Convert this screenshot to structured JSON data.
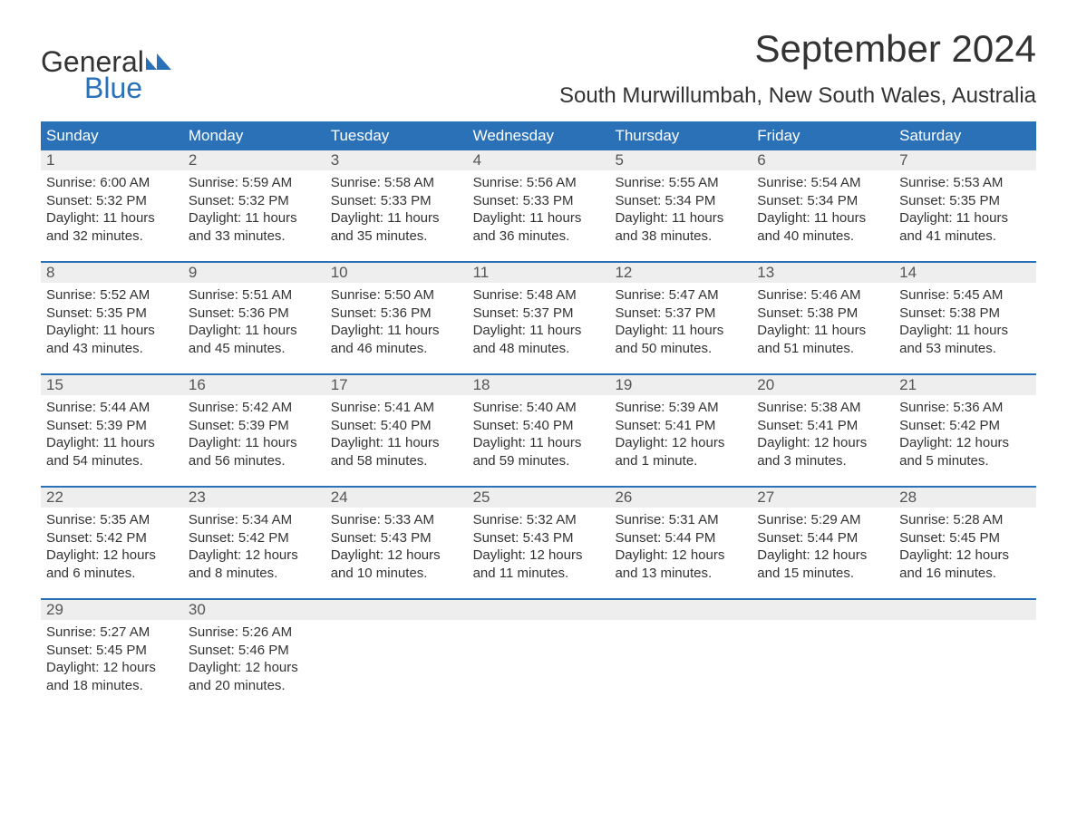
{
  "brand": {
    "word1": "General",
    "word2": "Blue",
    "logo_color": "#2a71b8"
  },
  "title": "September 2024",
  "location": "South Murwillumbah, New South Wales, Australia",
  "colors": {
    "header_bg": "#2a71b8",
    "header_text": "#ffffff",
    "date_bar_bg": "#eeeeee",
    "week_border": "#2a71b8",
    "body_text": "#333333",
    "page_bg": "#ffffff"
  },
  "typography": {
    "title_fontsize": 42,
    "location_fontsize": 24,
    "dayheader_fontsize": 17,
    "date_fontsize": 17,
    "body_fontsize": 15
  },
  "day_labels": [
    "Sunday",
    "Monday",
    "Tuesday",
    "Wednesday",
    "Thursday",
    "Friday",
    "Saturday"
  ],
  "weeks": [
    [
      {
        "date": "1",
        "sunrise": "Sunrise: 6:00 AM",
        "sunset": "Sunset: 5:32 PM",
        "daylight1": "Daylight: 11 hours",
        "daylight2": "and 32 minutes."
      },
      {
        "date": "2",
        "sunrise": "Sunrise: 5:59 AM",
        "sunset": "Sunset: 5:32 PM",
        "daylight1": "Daylight: 11 hours",
        "daylight2": "and 33 minutes."
      },
      {
        "date": "3",
        "sunrise": "Sunrise: 5:58 AM",
        "sunset": "Sunset: 5:33 PM",
        "daylight1": "Daylight: 11 hours",
        "daylight2": "and 35 minutes."
      },
      {
        "date": "4",
        "sunrise": "Sunrise: 5:56 AM",
        "sunset": "Sunset: 5:33 PM",
        "daylight1": "Daylight: 11 hours",
        "daylight2": "and 36 minutes."
      },
      {
        "date": "5",
        "sunrise": "Sunrise: 5:55 AM",
        "sunset": "Sunset: 5:34 PM",
        "daylight1": "Daylight: 11 hours",
        "daylight2": "and 38 minutes."
      },
      {
        "date": "6",
        "sunrise": "Sunrise: 5:54 AM",
        "sunset": "Sunset: 5:34 PM",
        "daylight1": "Daylight: 11 hours",
        "daylight2": "and 40 minutes."
      },
      {
        "date": "7",
        "sunrise": "Sunrise: 5:53 AM",
        "sunset": "Sunset: 5:35 PM",
        "daylight1": "Daylight: 11 hours",
        "daylight2": "and 41 minutes."
      }
    ],
    [
      {
        "date": "8",
        "sunrise": "Sunrise: 5:52 AM",
        "sunset": "Sunset: 5:35 PM",
        "daylight1": "Daylight: 11 hours",
        "daylight2": "and 43 minutes."
      },
      {
        "date": "9",
        "sunrise": "Sunrise: 5:51 AM",
        "sunset": "Sunset: 5:36 PM",
        "daylight1": "Daylight: 11 hours",
        "daylight2": "and 45 minutes."
      },
      {
        "date": "10",
        "sunrise": "Sunrise: 5:50 AM",
        "sunset": "Sunset: 5:36 PM",
        "daylight1": "Daylight: 11 hours",
        "daylight2": "and 46 minutes."
      },
      {
        "date": "11",
        "sunrise": "Sunrise: 5:48 AM",
        "sunset": "Sunset: 5:37 PM",
        "daylight1": "Daylight: 11 hours",
        "daylight2": "and 48 minutes."
      },
      {
        "date": "12",
        "sunrise": "Sunrise: 5:47 AM",
        "sunset": "Sunset: 5:37 PM",
        "daylight1": "Daylight: 11 hours",
        "daylight2": "and 50 minutes."
      },
      {
        "date": "13",
        "sunrise": "Sunrise: 5:46 AM",
        "sunset": "Sunset: 5:38 PM",
        "daylight1": "Daylight: 11 hours",
        "daylight2": "and 51 minutes."
      },
      {
        "date": "14",
        "sunrise": "Sunrise: 5:45 AM",
        "sunset": "Sunset: 5:38 PM",
        "daylight1": "Daylight: 11 hours",
        "daylight2": "and 53 minutes."
      }
    ],
    [
      {
        "date": "15",
        "sunrise": "Sunrise: 5:44 AM",
        "sunset": "Sunset: 5:39 PM",
        "daylight1": "Daylight: 11 hours",
        "daylight2": "and 54 minutes."
      },
      {
        "date": "16",
        "sunrise": "Sunrise: 5:42 AM",
        "sunset": "Sunset: 5:39 PM",
        "daylight1": "Daylight: 11 hours",
        "daylight2": "and 56 minutes."
      },
      {
        "date": "17",
        "sunrise": "Sunrise: 5:41 AM",
        "sunset": "Sunset: 5:40 PM",
        "daylight1": "Daylight: 11 hours",
        "daylight2": "and 58 minutes."
      },
      {
        "date": "18",
        "sunrise": "Sunrise: 5:40 AM",
        "sunset": "Sunset: 5:40 PM",
        "daylight1": "Daylight: 11 hours",
        "daylight2": "and 59 minutes."
      },
      {
        "date": "19",
        "sunrise": "Sunrise: 5:39 AM",
        "sunset": "Sunset: 5:41 PM",
        "daylight1": "Daylight: 12 hours",
        "daylight2": "and 1 minute."
      },
      {
        "date": "20",
        "sunrise": "Sunrise: 5:38 AM",
        "sunset": "Sunset: 5:41 PM",
        "daylight1": "Daylight: 12 hours",
        "daylight2": "and 3 minutes."
      },
      {
        "date": "21",
        "sunrise": "Sunrise: 5:36 AM",
        "sunset": "Sunset: 5:42 PM",
        "daylight1": "Daylight: 12 hours",
        "daylight2": "and 5 minutes."
      }
    ],
    [
      {
        "date": "22",
        "sunrise": "Sunrise: 5:35 AM",
        "sunset": "Sunset: 5:42 PM",
        "daylight1": "Daylight: 12 hours",
        "daylight2": "and 6 minutes."
      },
      {
        "date": "23",
        "sunrise": "Sunrise: 5:34 AM",
        "sunset": "Sunset: 5:42 PM",
        "daylight1": "Daylight: 12 hours",
        "daylight2": "and 8 minutes."
      },
      {
        "date": "24",
        "sunrise": "Sunrise: 5:33 AM",
        "sunset": "Sunset: 5:43 PM",
        "daylight1": "Daylight: 12 hours",
        "daylight2": "and 10 minutes."
      },
      {
        "date": "25",
        "sunrise": "Sunrise: 5:32 AM",
        "sunset": "Sunset: 5:43 PM",
        "daylight1": "Daylight: 12 hours",
        "daylight2": "and 11 minutes."
      },
      {
        "date": "26",
        "sunrise": "Sunrise: 5:31 AM",
        "sunset": "Sunset: 5:44 PM",
        "daylight1": "Daylight: 12 hours",
        "daylight2": "and 13 minutes."
      },
      {
        "date": "27",
        "sunrise": "Sunrise: 5:29 AM",
        "sunset": "Sunset: 5:44 PM",
        "daylight1": "Daylight: 12 hours",
        "daylight2": "and 15 minutes."
      },
      {
        "date": "28",
        "sunrise": "Sunrise: 5:28 AM",
        "sunset": "Sunset: 5:45 PM",
        "daylight1": "Daylight: 12 hours",
        "daylight2": "and 16 minutes."
      }
    ],
    [
      {
        "date": "29",
        "sunrise": "Sunrise: 5:27 AM",
        "sunset": "Sunset: 5:45 PM",
        "daylight1": "Daylight: 12 hours",
        "daylight2": "and 18 minutes."
      },
      {
        "date": "30",
        "sunrise": "Sunrise: 5:26 AM",
        "sunset": "Sunset: 5:46 PM",
        "daylight1": "Daylight: 12 hours",
        "daylight2": "and 20 minutes."
      },
      {
        "empty": true
      },
      {
        "empty": true
      },
      {
        "empty": true
      },
      {
        "empty": true
      },
      {
        "empty": true
      }
    ]
  ]
}
